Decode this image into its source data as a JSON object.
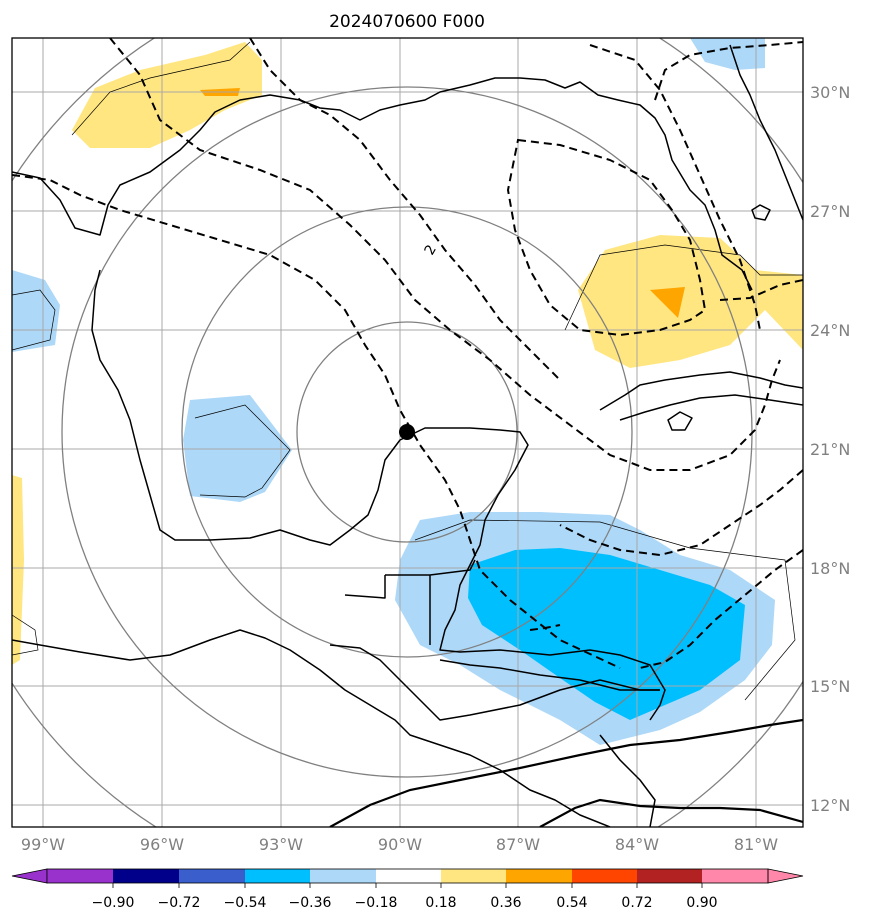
{
  "title": "2024070600 F000",
  "map": {
    "lat_range": [
      11.5,
      31.5
    ],
    "lon_range": [
      -99.75,
      -79.75
    ],
    "lat_ticks": [
      "12°N",
      "15°N",
      "18°N",
      "21°N",
      "24°N",
      "27°N",
      "30°N"
    ],
    "lon_ticks": [
      "99°W",
      "96°W",
      "93°W",
      "90°W",
      "87°W",
      "84°W",
      "81°W"
    ],
    "center_marker": {
      "lat": 21.4,
      "lon": -89.9
    },
    "contour_label": "2",
    "contour_line_style": "dashed",
    "grid": true
  },
  "colorbar": {
    "ticks": [
      "−0.90",
      "−0.72",
      "−0.54",
      "−0.36",
      "−0.18",
      "0.18",
      "0.36",
      "0.54",
      "0.72",
      "0.90"
    ],
    "colors": [
      "#9932cc",
      "#00008b",
      "#3a5fcd",
      "#00bfff",
      "#add8f8",
      "#ffffff",
      "#ffe680",
      "#ffa500",
      "#ff4500",
      "#b22222",
      "#ff88aa"
    ]
  }
}
